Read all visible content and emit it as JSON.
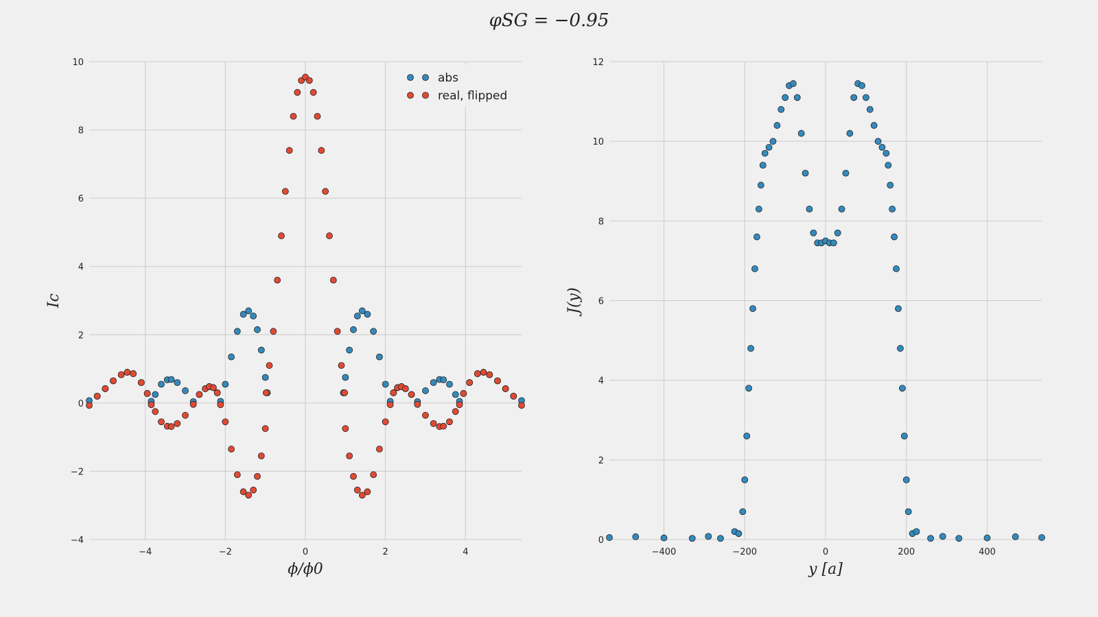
{
  "figure_title": "φSG = −0.95",
  "chart_data": [
    {
      "type": "scatter",
      "ylabel": "Ic",
      "xlabel": "ϕ/ϕ0",
      "xlim": [
        -5.4,
        5.4
      ],
      "ylim": [
        -4,
        10
      ],
      "xticks": [
        -4,
        -2,
        0,
        2,
        4
      ],
      "yticks": [
        -4,
        -2,
        0,
        2,
        4,
        6,
        8,
        10
      ],
      "xtick_labels": [
        "−4",
        "−2",
        "0",
        "2",
        "4"
      ],
      "ytick_labels": [
        "−4",
        "−2",
        "0",
        "2",
        "4",
        "6",
        "8",
        "10"
      ],
      "grid": true,
      "legend": "top-right",
      "series": [
        {
          "name": "abs",
          "color": "#348abd",
          "points": [
            [
              -5.4,
              0.07
            ],
            [
              -5.2,
              0.2
            ],
            [
              -5.0,
              0.42
            ],
            [
              -4.8,
              0.65
            ],
            [
              -4.6,
              0.83
            ],
            [
              -4.45,
              0.9
            ],
            [
              -4.3,
              0.86
            ],
            [
              -4.1,
              0.6
            ],
            [
              -3.95,
              0.28
            ],
            [
              -3.85,
              0.05
            ],
            [
              -3.75,
              0.25
            ],
            [
              -3.6,
              0.55
            ],
            [
              -3.45,
              0.68
            ],
            [
              -3.35,
              0.69
            ],
            [
              -3.2,
              0.6
            ],
            [
              -3.0,
              0.36
            ],
            [
              -2.8,
              0.04
            ],
            [
              -2.65,
              0.25
            ],
            [
              -2.5,
              0.42
            ],
            [
              -2.4,
              0.48
            ],
            [
              -2.3,
              0.45
            ],
            [
              -2.2,
              0.3
            ],
            [
              -2.12,
              0.05
            ],
            [
              -2.0,
              0.55
            ],
            [
              -1.85,
              1.35
            ],
            [
              -1.7,
              2.1
            ],
            [
              -1.55,
              2.6
            ],
            [
              -1.42,
              2.7
            ],
            [
              -1.3,
              2.55
            ],
            [
              -1.2,
              2.15
            ],
            [
              -1.1,
              1.55
            ],
            [
              -1.0,
              0.75
            ],
            [
              -0.95,
              0.3
            ],
            [
              0.95,
              0.3
            ],
            [
              1.0,
              0.75
            ],
            [
              1.1,
              1.55
            ],
            [
              1.2,
              2.15
            ],
            [
              1.3,
              2.55
            ],
            [
              1.42,
              2.7
            ],
            [
              1.55,
              2.6
            ],
            [
              1.7,
              2.1
            ],
            [
              1.85,
              1.35
            ],
            [
              2.0,
              0.55
            ],
            [
              2.12,
              0.05
            ],
            [
              2.2,
              0.3
            ],
            [
              2.3,
              0.45
            ],
            [
              2.4,
              0.48
            ],
            [
              2.5,
              0.42
            ],
            [
              2.65,
              0.25
            ],
            [
              2.8,
              0.04
            ],
            [
              3.0,
              0.36
            ],
            [
              3.2,
              0.6
            ],
            [
              3.35,
              0.69
            ],
            [
              3.45,
              0.68
            ],
            [
              3.6,
              0.55
            ],
            [
              3.75,
              0.25
            ],
            [
              3.85,
              0.05
            ],
            [
              3.95,
              0.28
            ],
            [
              4.1,
              0.6
            ],
            [
              4.3,
              0.86
            ],
            [
              4.45,
              0.9
            ],
            [
              4.6,
              0.83
            ],
            [
              4.8,
              0.65
            ],
            [
              5.0,
              0.42
            ],
            [
              5.2,
              0.2
            ],
            [
              5.4,
              0.07
            ]
          ]
        },
        {
          "name": "real, flipped",
          "color": "#e24a33",
          "points": [
            [
              -5.4,
              -0.07
            ],
            [
              -5.2,
              0.2
            ],
            [
              -5.0,
              0.42
            ],
            [
              -4.8,
              0.65
            ],
            [
              -4.6,
              0.83
            ],
            [
              -4.45,
              0.9
            ],
            [
              -4.3,
              0.86
            ],
            [
              -4.1,
              0.6
            ],
            [
              -3.95,
              0.28
            ],
            [
              -3.85,
              -0.05
            ],
            [
              -3.75,
              -0.25
            ],
            [
              -3.6,
              -0.55
            ],
            [
              -3.45,
              -0.68
            ],
            [
              -3.35,
              -0.69
            ],
            [
              -3.2,
              -0.6
            ],
            [
              -3.0,
              -0.36
            ],
            [
              -2.8,
              -0.04
            ],
            [
              -2.65,
              0.25
            ],
            [
              -2.5,
              0.42
            ],
            [
              -2.4,
              0.48
            ],
            [
              -2.3,
              0.45
            ],
            [
              -2.2,
              0.3
            ],
            [
              -2.12,
              -0.05
            ],
            [
              -2.0,
              -0.55
            ],
            [
              -1.85,
              -1.35
            ],
            [
              -1.7,
              -2.1
            ],
            [
              -1.55,
              -2.6
            ],
            [
              -1.42,
              -2.7
            ],
            [
              -1.3,
              -2.55
            ],
            [
              -1.2,
              -2.15
            ],
            [
              -1.1,
              -1.55
            ],
            [
              -1.0,
              -0.75
            ],
            [
              -0.98,
              0.3
            ],
            [
              -0.9,
              1.1
            ],
            [
              -0.8,
              2.1
            ],
            [
              -0.7,
              3.6
            ],
            [
              -0.6,
              4.9
            ],
            [
              -0.5,
              6.2
            ],
            [
              -0.4,
              7.4
            ],
            [
              -0.3,
              8.4
            ],
            [
              -0.2,
              9.1
            ],
            [
              -0.1,
              9.45
            ],
            [
              0.0,
              9.55
            ],
            [
              0.1,
              9.45
            ],
            [
              0.2,
              9.1
            ],
            [
              0.3,
              8.4
            ],
            [
              0.4,
              7.4
            ],
            [
              0.5,
              6.2
            ],
            [
              0.6,
              4.9
            ],
            [
              0.7,
              3.6
            ],
            [
              0.8,
              2.1
            ],
            [
              0.9,
              1.1
            ],
            [
              0.98,
              0.3
            ],
            [
              1.0,
              -0.75
            ],
            [
              1.1,
              -1.55
            ],
            [
              1.2,
              -2.15
            ],
            [
              1.3,
              -2.55
            ],
            [
              1.42,
              -2.7
            ],
            [
              1.55,
              -2.6
            ],
            [
              1.7,
              -2.1
            ],
            [
              1.85,
              -1.35
            ],
            [
              2.0,
              -0.55
            ],
            [
              2.12,
              -0.05
            ],
            [
              2.2,
              0.3
            ],
            [
              2.3,
              0.45
            ],
            [
              2.4,
              0.48
            ],
            [
              2.5,
              0.42
            ],
            [
              2.65,
              0.25
            ],
            [
              2.8,
              -0.04
            ],
            [
              3.0,
              -0.36
            ],
            [
              3.2,
              -0.6
            ],
            [
              3.35,
              -0.69
            ],
            [
              3.45,
              -0.68
            ],
            [
              3.6,
              -0.55
            ],
            [
              3.75,
              -0.25
            ],
            [
              3.85,
              -0.05
            ],
            [
              3.95,
              0.28
            ],
            [
              4.1,
              0.6
            ],
            [
              4.3,
              0.86
            ],
            [
              4.45,
              0.9
            ],
            [
              4.6,
              0.83
            ],
            [
              4.8,
              0.65
            ],
            [
              5.0,
              0.42
            ],
            [
              5.2,
              0.2
            ],
            [
              5.4,
              -0.07
            ]
          ]
        }
      ]
    },
    {
      "type": "scatter",
      "ylabel": "J(y)",
      "xlabel": "y [a]",
      "xlim": [
        -535,
        535
      ],
      "ylim": [
        0,
        12
      ],
      "xticks": [
        -400,
        -200,
        0,
        200,
        400
      ],
      "yticks": [
        0,
        2,
        4,
        6,
        8,
        10,
        12
      ],
      "xtick_labels": [
        "−400",
        "−200",
        "0",
        "200",
        "400"
      ],
      "ytick_labels": [
        "0",
        "2",
        "4",
        "6",
        "8",
        "10",
        "12"
      ],
      "grid": true,
      "series": [
        {
          "color": "#348abd",
          "points": [
            [
              -535,
              0.05
            ],
            [
              -470,
              0.07
            ],
            [
              -400,
              0.04
            ],
            [
              -330,
              0.03
            ],
            [
              -290,
              0.08
            ],
            [
              -260,
              0.03
            ],
            [
              -225,
              0.2
            ],
            [
              -215,
              0.15
            ],
            [
              -205,
              0.7
            ],
            [
              -200,
              1.5
            ],
            [
              -195,
              2.6
            ],
            [
              -190,
              3.8
            ],
            [
              -185,
              4.8
            ],
            [
              -180,
              5.8
            ],
            [
              -175,
              6.8
            ],
            [
              -170,
              7.6
            ],
            [
              -165,
              8.3
            ],
            [
              -160,
              8.9
            ],
            [
              -155,
              9.4
            ],
            [
              -150,
              9.7
            ],
            [
              -140,
              9.85
            ],
            [
              -130,
              10.0
            ],
            [
              -120,
              10.4
            ],
            [
              -110,
              10.8
            ],
            [
              -100,
              11.1
            ],
            [
              -90,
              11.4
            ],
            [
              -80,
              11.45
            ],
            [
              -70,
              11.1
            ],
            [
              -60,
              10.2
            ],
            [
              -50,
              9.2
            ],
            [
              -40,
              8.3
            ],
            [
              -30,
              7.7
            ],
            [
              -20,
              7.45
            ],
            [
              -10,
              7.45
            ],
            [
              0,
              7.5
            ],
            [
              10,
              7.45
            ],
            [
              20,
              7.45
            ],
            [
              30,
              7.7
            ],
            [
              40,
              8.3
            ],
            [
              50,
              9.2
            ],
            [
              60,
              10.2
            ],
            [
              70,
              11.1
            ],
            [
              80,
              11.45
            ],
            [
              90,
              11.4
            ],
            [
              100,
              11.1
            ],
            [
              110,
              10.8
            ],
            [
              120,
              10.4
            ],
            [
              130,
              10.0
            ],
            [
              140,
              9.85
            ],
            [
              150,
              9.7
            ],
            [
              155,
              9.4
            ],
            [
              160,
              8.9
            ],
            [
              165,
              8.3
            ],
            [
              170,
              7.6
            ],
            [
              175,
              6.8
            ],
            [
              180,
              5.8
            ],
            [
              185,
              4.8
            ],
            [
              190,
              3.8
            ],
            [
              195,
              2.6
            ],
            [
              200,
              1.5
            ],
            [
              205,
              0.7
            ],
            [
              215,
              0.15
            ],
            [
              225,
              0.2
            ],
            [
              260,
              0.03
            ],
            [
              290,
              0.08
            ],
            [
              330,
              0.03
            ],
            [
              400,
              0.04
            ],
            [
              470,
              0.07
            ],
            [
              535,
              0.05
            ]
          ]
        }
      ]
    }
  ]
}
